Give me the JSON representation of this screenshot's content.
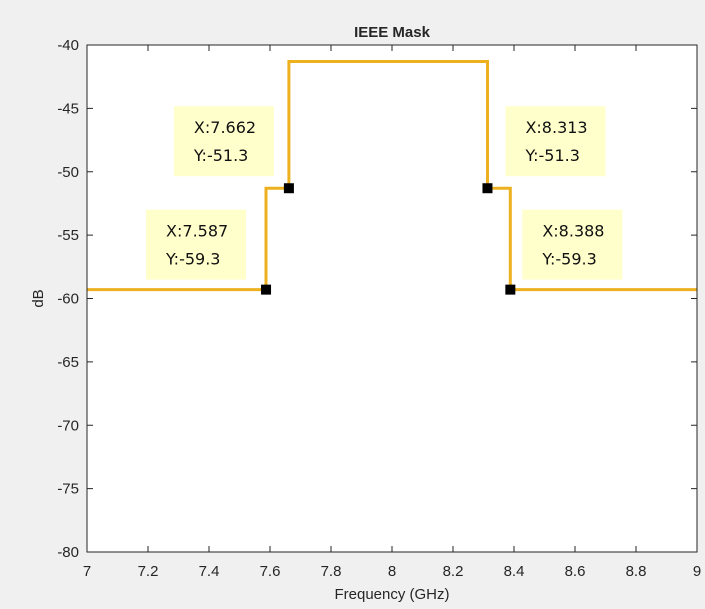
{
  "chart_data": {
    "type": "line",
    "title": "IEEE Mask",
    "xlabel": "Frequency (GHz)",
    "ylabel": "dB",
    "xlim": [
      7,
      9
    ],
    "ylim": [
      -80,
      -40
    ],
    "xticks": [
      7,
      7.2,
      7.4,
      7.6,
      7.8,
      8,
      8.2,
      8.4,
      8.6,
      8.8,
      9
    ],
    "xtick_labels": [
      "7",
      "7.2",
      "7.4",
      "7.6",
      "7.8",
      "8",
      "8.2",
      "8.4",
      "8.6",
      "8.8",
      "9"
    ],
    "yticks": [
      -80,
      -75,
      -70,
      -65,
      -60,
      -55,
      -50,
      -45,
      -40
    ],
    "ytick_labels": [
      "-80",
      "-75",
      "-70",
      "-65",
      "-60",
      "-55",
      "-50",
      "-45",
      "-40"
    ],
    "grid": false,
    "series": [
      {
        "color": "#edb120",
        "x": [
          7.0,
          7.587,
          7.587,
          7.662,
          7.662,
          8.0,
          8.313,
          8.313,
          8.388,
          8.388,
          9.0
        ],
        "y": [
          -59.3,
          -59.3,
          -51.3,
          -51.3,
          -41.3,
          -41.3,
          -41.3,
          -51.3,
          -51.3,
          -59.3,
          -59.3
        ]
      }
    ],
    "datatips": [
      {
        "x": 7.587,
        "y": -59.3,
        "x_text": "X:7.587",
        "y_text": "Y:-59.3"
      },
      {
        "x": 7.662,
        "y": -51.3,
        "x_text": "X:7.662",
        "y_text": "Y:-51.3"
      },
      {
        "x": 8.313,
        "y": -51.3,
        "x_text": "X:8.313",
        "y_text": "Y:-51.3"
      },
      {
        "x": 8.388,
        "y": -59.3,
        "x_text": "X:8.388",
        "y_text": "Y:-59.3"
      }
    ],
    "datatip_color": "#ffffcc"
  }
}
